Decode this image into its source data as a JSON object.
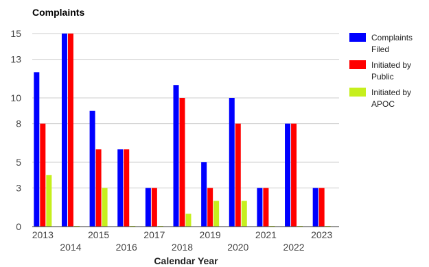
{
  "chart_data": {
    "type": "bar",
    "title": "Complaints",
    "xlabel": "Calendar Year",
    "ylabel": "",
    "ylim": [
      0,
      15
    ],
    "yticks": [
      0,
      3,
      5,
      8,
      10,
      13,
      15
    ],
    "grid": true,
    "legend_position": "right",
    "categories": [
      "2013",
      "2014",
      "2015",
      "2016",
      "2017",
      "2018",
      "2019",
      "2020",
      "2021",
      "2022",
      "2023"
    ],
    "series": [
      {
        "name": "Complaints Filed",
        "color": "#0000ff",
        "values": [
          12,
          15,
          9,
          6,
          3,
          11,
          5,
          10,
          3,
          8,
          3
        ]
      },
      {
        "name": "Initiated by Public",
        "color": "#ff0000",
        "values": [
          8,
          15,
          6,
          6,
          3,
          10,
          3,
          8,
          3,
          8,
          3
        ]
      },
      {
        "name": "Initiated by APOC",
        "color": "#c6ef1d",
        "values": [
          4,
          0,
          3,
          0,
          0,
          1,
          2,
          2,
          0,
          0,
          0
        ]
      }
    ]
  }
}
